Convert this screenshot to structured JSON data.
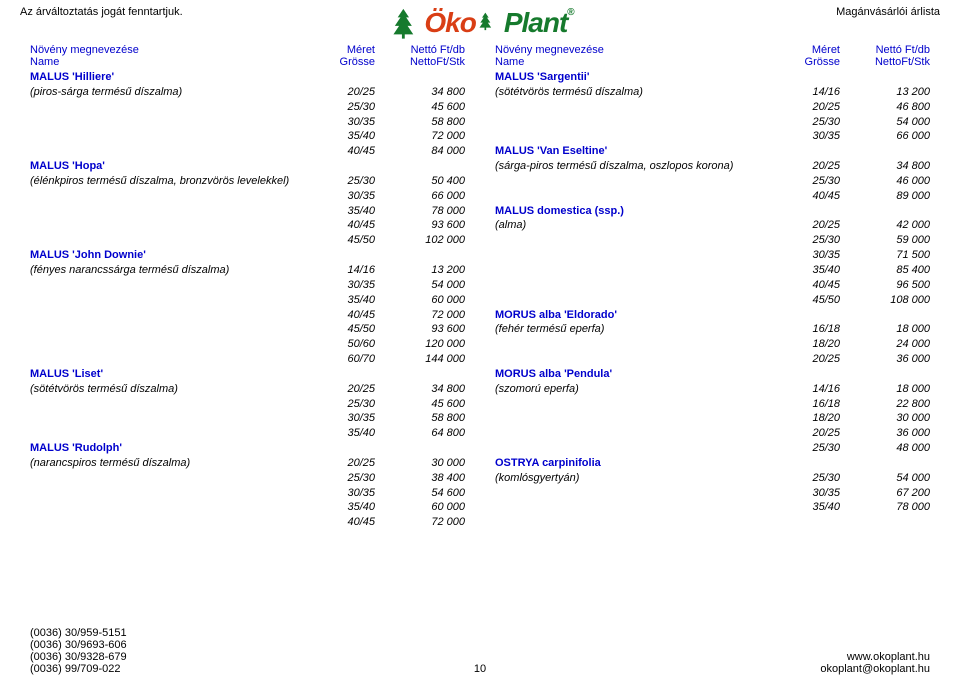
{
  "header": {
    "top_left": "Az árváltoztatás jogát fenntartjuk.",
    "top_right": "Magánvásárlói árlista",
    "logo_oko": "Öko",
    "logo_plant": "Plant",
    "logo_r": "®"
  },
  "thead": {
    "name_hu": "Növény megnevezése",
    "name_de": "Name",
    "size_hu": "Méret",
    "size_de": "Grösse",
    "price_hu": "Nettó Ft/db",
    "price_de": "NettoFt/Stk"
  },
  "left": [
    {
      "species": "MALUS 'Hilliere'"
    },
    {
      "desc": "(piros-sárga termésű díszalma)",
      "size": "20/25",
      "price": "34 800"
    },
    {
      "size": "25/30",
      "price": "45 600"
    },
    {
      "size": "30/35",
      "price": "58 800"
    },
    {
      "size": "35/40",
      "price": "72 000"
    },
    {
      "size": "40/45",
      "price": "84 000"
    },
    {
      "species": "MALUS 'Hopa'"
    },
    {
      "desc": "(élénkpiros termésű díszalma, bronzvörös levelekkel)",
      "size": "25/30",
      "price": "50 400"
    },
    {
      "size": "30/35",
      "price": "66 000"
    },
    {
      "size": "35/40",
      "price": "78 000"
    },
    {
      "size": "40/45",
      "price": "93 600"
    },
    {
      "size": "45/50",
      "price": "102 000"
    },
    {
      "species": "MALUS 'John Downie'"
    },
    {
      "desc": "(fényes narancssárga termésű díszalma)",
      "size": "14/16",
      "price": "13 200"
    },
    {
      "size": "30/35",
      "price": "54 000"
    },
    {
      "size": "35/40",
      "price": "60 000"
    },
    {
      "size": "40/45",
      "price": "72 000"
    },
    {
      "size": "45/50",
      "price": "93 600"
    },
    {
      "size": "50/60",
      "price": "120 000"
    },
    {
      "size": "60/70",
      "price": "144 000"
    },
    {
      "species": "MALUS 'Liset'"
    },
    {
      "desc": "(sötétvörös termésű díszalma)",
      "size": "20/25",
      "price": "34 800"
    },
    {
      "size": "25/30",
      "price": "45 600"
    },
    {
      "size": "30/35",
      "price": "58 800"
    },
    {
      "size": "35/40",
      "price": "64 800"
    },
    {
      "species": "MALUS 'Rudolph'"
    },
    {
      "desc": "(narancspiros termésű díszalma)",
      "size": "20/25",
      "price": "30 000"
    },
    {
      "size": "25/30",
      "price": "38 400"
    },
    {
      "size": "30/35",
      "price": "54 600"
    },
    {
      "size": "35/40",
      "price": "60 000"
    },
    {
      "size": "40/45",
      "price": "72 000"
    }
  ],
  "right": [
    {
      "species": "MALUS 'Sargentii'"
    },
    {
      "desc": "(sötétvörös termésű díszalma)",
      "size": "14/16",
      "price": "13 200"
    },
    {
      "size": "20/25",
      "price": "46 800"
    },
    {
      "size": "25/30",
      "price": "54 000"
    },
    {
      "size": "30/35",
      "price": "66 000"
    },
    {
      "species": "MALUS 'Van Eseltine'"
    },
    {
      "desc": "(sárga-piros termésű díszalma, oszlopos korona)",
      "size": "20/25",
      "price": "34 800"
    },
    {
      "size": "25/30",
      "price": "46 000"
    },
    {
      "size": "40/45",
      "price": "89 000"
    },
    {
      "species": "MALUS  domestica (ssp.)"
    },
    {
      "desc": "(alma)",
      "size": "20/25",
      "price": "42 000"
    },
    {
      "size": "25/30",
      "price": "59 000"
    },
    {
      "size": "30/35",
      "price": "71 500"
    },
    {
      "size": "35/40",
      "price": "85 400"
    },
    {
      "size": "40/45",
      "price": "96 500"
    },
    {
      "size": "45/50",
      "price": "108 000"
    },
    {
      "species": "MORUS alba 'Eldorado'"
    },
    {
      "desc": "(fehér termésű eperfa)",
      "size": "16/18",
      "price": "18 000"
    },
    {
      "size": "18/20",
      "price": "24 000"
    },
    {
      "size": "20/25",
      "price": "36 000"
    },
    {
      "species": "MORUS alba 'Pendula'"
    },
    {
      "desc": "(szomorú eperfa)",
      "size": "14/16",
      "price": "18 000"
    },
    {
      "size": "16/18",
      "price": "22 800"
    },
    {
      "size": "18/20",
      "price": "30 000"
    },
    {
      "size": "20/25",
      "price": "36 000"
    },
    {
      "size": "25/30",
      "price": "48 000"
    },
    {
      "species": "OSTRYA carpinifolia"
    },
    {
      "desc": "(komlósgyertyán)",
      "size": "25/30",
      "price": "54 000"
    },
    {
      "size": "30/35",
      "price": "67 200"
    },
    {
      "size": "35/40",
      "price": "78 000"
    }
  ],
  "footer": {
    "phones": [
      "(0036) 30/959-5151",
      "(0036) 30/9693-606",
      "(0036) 30/9328-679",
      "(0036) 99/709-022"
    ],
    "page": "10",
    "web": "www.okoplant.hu",
    "email": "okoplant@okoplant.hu"
  }
}
